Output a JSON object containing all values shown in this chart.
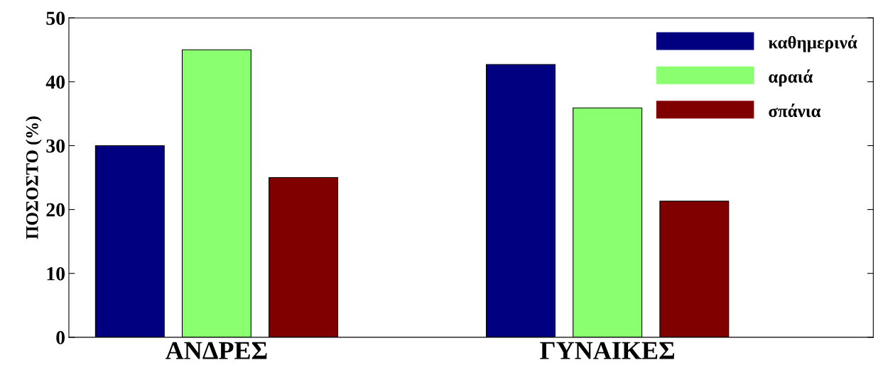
{
  "chart_data": {
    "type": "bar",
    "ylabel": "ΠΟΣΟΣΤΟ (%)",
    "categories": [
      "ΑΝΔΡΕΣ",
      "ΓΥΝΑΙΚΕΣ"
    ],
    "series": [
      {
        "name": "καθημερινά",
        "color": "#000080",
        "values": [
          30,
          42.7
        ]
      },
      {
        "name": "αραιά",
        "color": "#8aff6f",
        "values": [
          45,
          35.9
        ]
      },
      {
        "name": "σπάνια",
        "color": "#800000",
        "values": [
          25,
          21.3
        ]
      }
    ],
    "ylim": [
      0,
      50
    ],
    "yticks": [
      0,
      10,
      20,
      30,
      40,
      50
    ],
    "grid": false,
    "legend": "top right"
  }
}
